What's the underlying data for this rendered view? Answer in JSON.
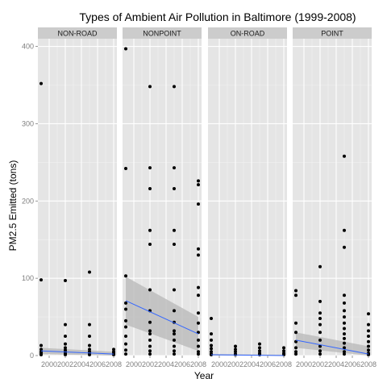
{
  "chart_data": {
    "type": "scatter",
    "title": "Types of Ambient Air Pollution in Baltimore (1999-2008)",
    "xlabel": "Year",
    "ylabel": "PM2.5 Emitted (tons)",
    "xlim": [
      1998.6,
      2008.4
    ],
    "ylim": [
      0,
      410
    ],
    "x_ticks": [
      2000,
      2002,
      2004,
      2006,
      2008
    ],
    "x_tick_labels": [
      "2000",
      "2002",
      "2004",
      "2006",
      "2008"
    ],
    "y_ticks": [
      0,
      100,
      200,
      300,
      400
    ],
    "y_tick_labels": [
      "0",
      "100",
      "200",
      "300",
      "400"
    ],
    "grid": true,
    "smoother": {
      "method": "lm",
      "color": "#3366ff",
      "band": "confidence interval"
    },
    "panels": [
      {
        "name": "NON-ROAD",
        "points": [
          [
            1999,
            352
          ],
          [
            1999,
            98
          ],
          [
            1999,
            13
          ],
          [
            1999,
            8
          ],
          [
            1999,
            5
          ],
          [
            1999,
            3
          ],
          [
            1999,
            1
          ],
          [
            2002,
            97
          ],
          [
            2002,
            40
          ],
          [
            2002,
            25
          ],
          [
            2002,
            15
          ],
          [
            2002,
            10
          ],
          [
            2002,
            7
          ],
          [
            2002,
            5
          ],
          [
            2002,
            3
          ],
          [
            2002,
            2
          ],
          [
            2002,
            1
          ],
          [
            2005,
            108
          ],
          [
            2005,
            40
          ],
          [
            2005,
            25
          ],
          [
            2005,
            13
          ],
          [
            2005,
            8
          ],
          [
            2005,
            5
          ],
          [
            2005,
            3
          ],
          [
            2005,
            1
          ],
          [
            2008,
            8
          ],
          [
            2008,
            5
          ],
          [
            2008,
            3
          ],
          [
            2008,
            1
          ]
        ],
        "fit": {
          "y1999": 6,
          "y2008": 2,
          "lo1999": 2,
          "hi1999": 10,
          "lo2008": 0,
          "hi2008": 5
        }
      },
      {
        "name": "NONPOINT",
        "points": [
          [
            1999,
            397
          ],
          [
            1999,
            242
          ],
          [
            1999,
            103
          ],
          [
            1999,
            68
          ],
          [
            1999,
            60
          ],
          [
            1999,
            45
          ],
          [
            1999,
            37
          ],
          [
            1999,
            25
          ],
          [
            1999,
            15
          ],
          [
            1999,
            7
          ],
          [
            1999,
            2
          ],
          [
            2002,
            348
          ],
          [
            2002,
            243
          ],
          [
            2002,
            216
          ],
          [
            2002,
            162
          ],
          [
            2002,
            144
          ],
          [
            2002,
            85
          ],
          [
            2002,
            58
          ],
          [
            2002,
            43
          ],
          [
            2002,
            32
          ],
          [
            2002,
            28
          ],
          [
            2002,
            20
          ],
          [
            2002,
            12
          ],
          [
            2002,
            6
          ],
          [
            2002,
            2
          ],
          [
            2005,
            348
          ],
          [
            2005,
            243
          ],
          [
            2005,
            216
          ],
          [
            2005,
            162
          ],
          [
            2005,
            144
          ],
          [
            2005,
            85
          ],
          [
            2005,
            58
          ],
          [
            2005,
            43
          ],
          [
            2005,
            32
          ],
          [
            2005,
            28
          ],
          [
            2005,
            20
          ],
          [
            2005,
            12
          ],
          [
            2005,
            6
          ],
          [
            2005,
            2
          ],
          [
            2008,
            226
          ],
          [
            2008,
            221
          ],
          [
            2008,
            196
          ],
          [
            2008,
            138
          ],
          [
            2008,
            130
          ],
          [
            2008,
            88
          ],
          [
            2008,
            78
          ],
          [
            2008,
            55
          ],
          [
            2008,
            42
          ],
          [
            2008,
            30
          ],
          [
            2008,
            20
          ],
          [
            2008,
            12
          ],
          [
            2008,
            5
          ],
          [
            2008,
            2
          ]
        ],
        "fit": {
          "y1999": 71,
          "y2008": 28,
          "lo1999": 40,
          "hi1999": 102,
          "lo2008": 6,
          "hi2008": 50
        }
      },
      {
        "name": "ON-ROAD",
        "points": [
          [
            1999,
            48
          ],
          [
            1999,
            28
          ],
          [
            1999,
            20
          ],
          [
            1999,
            13
          ],
          [
            1999,
            9
          ],
          [
            1999,
            5
          ],
          [
            1999,
            2
          ],
          [
            1999,
            1
          ],
          [
            2002,
            12
          ],
          [
            2002,
            8
          ],
          [
            2002,
            5
          ],
          [
            2002,
            2
          ],
          [
            2002,
            1
          ],
          [
            2005,
            15
          ],
          [
            2005,
            10
          ],
          [
            2005,
            6
          ],
          [
            2005,
            3
          ],
          [
            2005,
            1
          ],
          [
            2008,
            10
          ],
          [
            2008,
            6
          ],
          [
            2008,
            3
          ],
          [
            2008,
            1
          ]
        ],
        "fit": {
          "y1999": 1,
          "y2008": 0,
          "lo1999": 0,
          "hi1999": 2,
          "lo2008": 0,
          "hi2008": 1
        }
      },
      {
        "name": "POINT",
        "points": [
          [
            1999,
            84
          ],
          [
            1999,
            78
          ],
          [
            1999,
            42
          ],
          [
            1999,
            30
          ],
          [
            1999,
            18
          ],
          [
            1999,
            10
          ],
          [
            1999,
            5
          ],
          [
            1999,
            2
          ],
          [
            2002,
            115
          ],
          [
            2002,
            70
          ],
          [
            2002,
            55
          ],
          [
            2002,
            48
          ],
          [
            2002,
            40
          ],
          [
            2002,
            30
          ],
          [
            2002,
            20
          ],
          [
            2002,
            12
          ],
          [
            2002,
            6
          ],
          [
            2002,
            2
          ],
          [
            2005,
            258
          ],
          [
            2005,
            162
          ],
          [
            2005,
            140
          ],
          [
            2005,
            78
          ],
          [
            2005,
            68
          ],
          [
            2005,
            58
          ],
          [
            2005,
            50
          ],
          [
            2005,
            42
          ],
          [
            2005,
            35
          ],
          [
            2005,
            28
          ],
          [
            2005,
            22
          ],
          [
            2005,
            16
          ],
          [
            2005,
            10
          ],
          [
            2005,
            5
          ],
          [
            2005,
            2
          ],
          [
            2008,
            54
          ],
          [
            2008,
            40
          ],
          [
            2008,
            32
          ],
          [
            2008,
            25
          ],
          [
            2008,
            18
          ],
          [
            2008,
            12
          ],
          [
            2008,
            7
          ],
          [
            2008,
            3
          ],
          [
            2008,
            1
          ]
        ],
        "fit": {
          "y1999": 20,
          "y2008": 2,
          "lo1999": 10,
          "hi1999": 30,
          "lo2008": 0,
          "hi2008": 12
        }
      }
    ]
  },
  "colors": {
    "panel_bg": "#e5e5e5",
    "grid_major": "#ffffff",
    "grid_minor": "#f2f2f2",
    "strip_bg": "#cccccc",
    "point": "#000000",
    "fit_line": "#3366ff",
    "ci_band": "#bdbdbd"
  }
}
